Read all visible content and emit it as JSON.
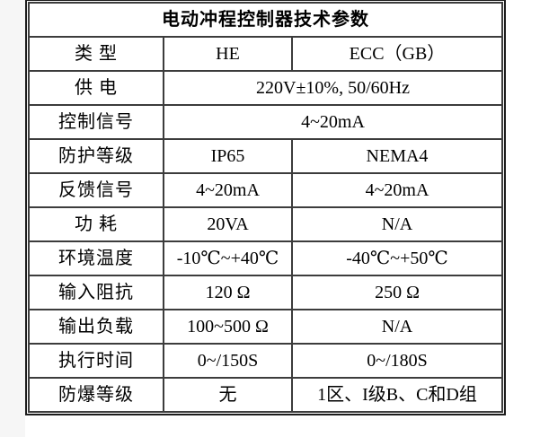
{
  "page": {
    "background_color": "#ffffff",
    "gutter_color": "#f6f6f6",
    "border_color": "#1d1d1d",
    "grid_color": "#3c3c3c",
    "text_color": "#000000"
  },
  "table": {
    "title": "电动冲程控制器技术参数",
    "rows": [
      {
        "label": "类 型",
        "he": "HE",
        "ecc": "ECC（GB）"
      },
      {
        "label": "供 电",
        "value": "220V±10%, 50/60Hz"
      },
      {
        "label": "控制信号",
        "value": "4~20mA"
      },
      {
        "label": "防护等级",
        "he": "IP65",
        "ecc": "NEMA4"
      },
      {
        "label": "反馈信号",
        "he": "4~20mA",
        "ecc": "4~20mA"
      },
      {
        "label": "功 耗",
        "he": "20VA",
        "ecc": "N/A"
      },
      {
        "label": "环境温度",
        "he": "-10℃~+40℃",
        "ecc": "-40℃~+50℃"
      },
      {
        "label": "输入阻抗",
        "he": "120 Ω",
        "ecc": "250 Ω"
      },
      {
        "label": "输出负载",
        "he": "100~500 Ω",
        "ecc": "N/A"
      },
      {
        "label": "执行时间",
        "he": "0~/150S",
        "ecc": "0~/180S"
      },
      {
        "label": "防爆等级",
        "he": "无",
        "ecc": "1区、I级B、C和D组"
      }
    ]
  }
}
